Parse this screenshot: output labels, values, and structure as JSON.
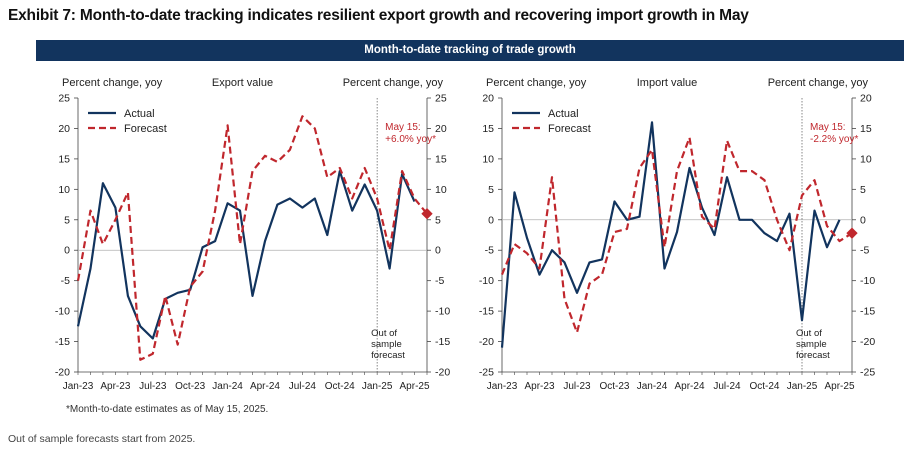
{
  "title": "Exhibit 7: Month-to-date tracking indicates resilient export growth and recovering import growth in May",
  "banner": "Month-to-date tracking of trade growth",
  "footnote": "*Month-to-date estimates as of May 15, 2025.",
  "source_note": "Out of sample forecasts start from 2025.",
  "colors": {
    "actual": "#12345e",
    "forecast": "#c0272d",
    "banner": "#12345e",
    "zero_line": "#b0b0b0"
  },
  "chart_data": [
    {
      "type": "line",
      "title": "Export value",
      "ylabel_left": "Percent change, yoy",
      "ylabel_right": "Percent change, yoy",
      "ylim": [
        -20,
        25
      ],
      "yticks": [
        -20,
        -15,
        -10,
        -5,
        0,
        5,
        10,
        15,
        20,
        25
      ],
      "x_range": [
        "2023-01",
        "2025-05"
      ],
      "xtick_labels": [
        "Jan-23",
        "Apr-23",
        "Jul-23",
        "Oct-23",
        "Jan-24",
        "Apr-24",
        "Jul-24",
        "Oct-24",
        "Jan-25",
        "Apr-25"
      ],
      "oos_start": "2025-01",
      "oos_label": [
        "Out of",
        "sample",
        "forecast"
      ],
      "annotation": {
        "lines": [
          "May 15:",
          "+6.0% yoy*"
        ],
        "x": "2025-05",
        "y": 6.0
      },
      "legend": [
        "Actual",
        "Forecast"
      ],
      "grid": false,
      "series": [
        {
          "name": "Actual",
          "style": "solid",
          "x": [
            "2023-01",
            "2023-02",
            "2023-03",
            "2023-04",
            "2023-05",
            "2023-06",
            "2023-07",
            "2023-08",
            "2023-09",
            "2023-10",
            "2023-11",
            "2023-12",
            "2024-01",
            "2024-02",
            "2024-03",
            "2024-04",
            "2024-05",
            "2024-06",
            "2024-07",
            "2024-08",
            "2024-09",
            "2024-10",
            "2024-11",
            "2024-12",
            "2025-01",
            "2025-02",
            "2025-03",
            "2025-04"
          ],
          "y": [
            -12.5,
            -3,
            11,
            7,
            -7.5,
            -12.5,
            -14.5,
            -8,
            -7,
            -6.5,
            0.5,
            1.5,
            7.7,
            6.5,
            -7.5,
            1.5,
            7.5,
            8.5,
            7,
            8.5,
            2.5,
            13,
            6.5,
            10.8,
            6.5,
            -3,
            12.5,
            8
          ]
        },
        {
          "name": "Forecast",
          "style": "dashed",
          "x": [
            "2023-01",
            "2023-02",
            "2023-03",
            "2023-04",
            "2023-05",
            "2023-06",
            "2023-07",
            "2023-08",
            "2023-09",
            "2023-10",
            "2023-11",
            "2023-12",
            "2024-01",
            "2024-02",
            "2024-03",
            "2024-04",
            "2024-05",
            "2024-06",
            "2024-07",
            "2024-08",
            "2024-09",
            "2024-10",
            "2024-11",
            "2024-12",
            "2025-01",
            "2025-02",
            "2025-03",
            "2025-04",
            "2025-05"
          ],
          "y": [
            -5,
            6.5,
            1,
            5,
            9.5,
            -18,
            -17,
            -7.5,
            -15.5,
            -6,
            -3.5,
            6.5,
            20.5,
            1,
            13,
            15.5,
            14.5,
            16.5,
            22,
            20,
            12,
            13.5,
            8.5,
            13.5,
            8.5,
            0,
            13,
            8.5,
            6
          ]
        }
      ]
    },
    {
      "type": "line",
      "title": "Import value",
      "ylabel_left": "Percent change, yoy",
      "ylabel_right": "Percent change, yoy",
      "ylim": [
        -25,
        20
      ],
      "yticks": [
        -25,
        -20,
        -15,
        -10,
        -5,
        0,
        5,
        10,
        15,
        20
      ],
      "x_range": [
        "2023-01",
        "2025-05"
      ],
      "xtick_labels": [
        "Jan-23",
        "Apr-23",
        "Jul-23",
        "Oct-23",
        "Jan-24",
        "Apr-24",
        "Jul-24",
        "Oct-24",
        "Jan-25",
        "Apr-25"
      ],
      "oos_start": "2025-01",
      "oos_label": [
        "Out of",
        "sample",
        "forecast"
      ],
      "annotation": {
        "lines": [
          "May 15:",
          "-2.2% yoy*"
        ],
        "x": "2025-05",
        "y": -2.2
      },
      "legend": [
        "Actual",
        "Forecast"
      ],
      "grid": false,
      "series": [
        {
          "name": "Actual",
          "style": "solid",
          "x": [
            "2023-01",
            "2023-02",
            "2023-03",
            "2023-04",
            "2023-05",
            "2023-06",
            "2023-07",
            "2023-08",
            "2023-09",
            "2023-10",
            "2023-11",
            "2023-12",
            "2024-01",
            "2024-02",
            "2024-03",
            "2024-04",
            "2024-05",
            "2024-06",
            "2024-07",
            "2024-08",
            "2024-09",
            "2024-10",
            "2024-11",
            "2024-12",
            "2025-01",
            "2025-02",
            "2025-03",
            "2025-04"
          ],
          "y": [
            -21,
            4.5,
            -3,
            -9,
            -5,
            -7,
            -12,
            -7,
            -6.5,
            3,
            0,
            0.5,
            16,
            -8,
            -2,
            8.5,
            2,
            -2.5,
            7,
            0,
            0,
            -2.2,
            -3.5,
            1,
            -16.5,
            1.5,
            -4.5,
            0
          ]
        },
        {
          "name": "Forecast",
          "style": "dashed",
          "x": [
            "2023-01",
            "2023-02",
            "2023-03",
            "2023-04",
            "2023-05",
            "2023-06",
            "2023-07",
            "2023-08",
            "2023-09",
            "2023-10",
            "2023-11",
            "2023-12",
            "2024-01",
            "2024-02",
            "2024-03",
            "2024-04",
            "2024-05",
            "2024-06",
            "2024-07",
            "2024-08",
            "2024-09",
            "2024-10",
            "2024-11",
            "2024-12",
            "2025-01",
            "2025-02",
            "2025-03",
            "2025-04",
            "2025-05"
          ],
          "y": [
            -9,
            -4,
            -5.5,
            -8,
            7,
            -13,
            -18.5,
            -10.5,
            -9,
            -2,
            -1.5,
            8.5,
            11.5,
            -4.5,
            8,
            13.5,
            0.5,
            -1.5,
            13,
            8,
            8,
            6.5,
            0,
            -5,
            4,
            6.5,
            -1,
            -3.5,
            -2.2
          ]
        }
      ]
    }
  ]
}
